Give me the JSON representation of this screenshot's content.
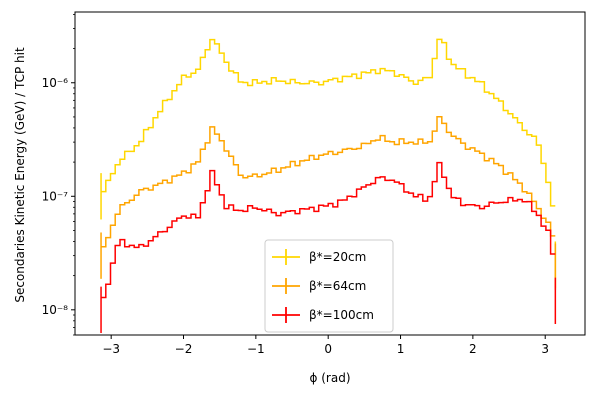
{
  "chart_data": {
    "type": "line",
    "drawstyle": "steps",
    "xlabel": "ϕ (rad)",
    "ylabel": "Secondaries Kinetic Energy (GeV) / TCP hit",
    "xlim": [
      -3.5,
      3.55
    ],
    "ylim": [
      6e-09,
      4.2e-06
    ],
    "yscale": "log",
    "grid": false,
    "legend_position": "lower-center",
    "x_ticks": [
      -3,
      -2,
      -1,
      0,
      1,
      2,
      3
    ],
    "x_tick_labels": [
      "−3",
      "−2",
      "−1",
      "0",
      "1",
      "2",
      "3"
    ],
    "y_ticks": [
      1e-08,
      1e-07,
      1e-06
    ],
    "y_tick_labels": [
      "10⁻⁸",
      "10⁻⁷",
      "10⁻⁶"
    ],
    "x": [
      -3.14,
      -2.9,
      -2.6,
      -2.3,
      -2.0,
      -1.8,
      -1.6,
      -1.4,
      -1.2,
      -1.0,
      -0.7,
      -0.4,
      -0.1,
      0.2,
      0.5,
      0.7,
      0.9,
      1.2,
      1.4,
      1.55,
      1.7,
      1.9,
      2.1,
      2.4,
      2.7,
      2.9,
      3.1,
      3.14
    ],
    "series": [
      {
        "name": "β*=20cm",
        "color": "#ffd700",
        "values": [
          1e-07,
          2e-07,
          3e-07,
          6e-07,
          1.1e-06,
          1.3e-06,
          2.5e-06,
          1.5e-06,
          1e-06,
          1e-06,
          1.05e-06,
          1e-06,
          1e-06,
          1.1e-06,
          1.2e-06,
          1.3e-06,
          1.25e-06,
          1e-06,
          1.1e-06,
          2.6e-06,
          1.5e-06,
          1.2e-06,
          1e-06,
          6.5e-07,
          4e-07,
          3e-07,
          1e-07,
          2.5e-08
        ]
      },
      {
        "name": "β*=64cm",
        "color": "#ffa500",
        "values": [
          3e-08,
          7.5e-08,
          1.1e-07,
          1.3e-07,
          1.6e-07,
          2e-07,
          4e-07,
          2.6e-07,
          1.5e-07,
          1.5e-07,
          1.7e-07,
          2e-07,
          2.3e-07,
          2.5e-07,
          2.8e-07,
          3.3e-07,
          3e-07,
          3e-07,
          3e-07,
          5e-07,
          3.5e-07,
          2.8e-07,
          2.4e-07,
          1.8e-07,
          1.2e-07,
          8e-08,
          5e-08,
          2.4e-08
        ]
      },
      {
        "name": "β*=100cm",
        "color": "#ff0000",
        "values": [
          1e-08,
          4e-08,
          3.5e-08,
          4.8e-08,
          6.8e-08,
          6.5e-08,
          1.6e-07,
          8e-08,
          7.5e-08,
          8e-08,
          7e-08,
          7.5e-08,
          8e-08,
          9e-08,
          1.2e-07,
          1.45e-07,
          1.4e-07,
          1e-07,
          9.5e-08,
          2e-07,
          1e-07,
          8.5e-08,
          8e-08,
          9e-08,
          9.5e-08,
          7e-08,
          4e-08,
          1.2e-08
        ]
      }
    ]
  }
}
